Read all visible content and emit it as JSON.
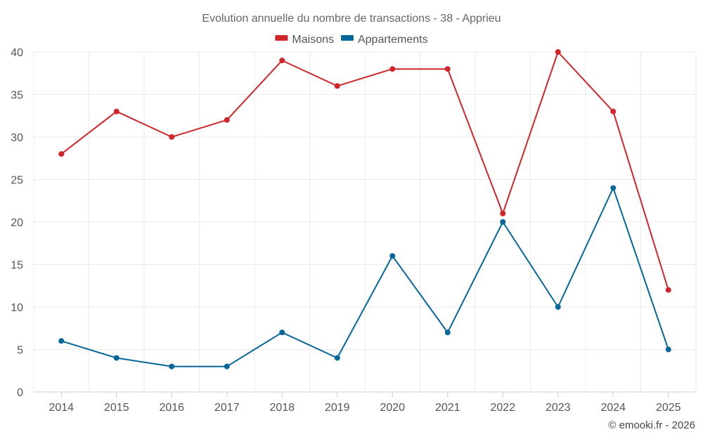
{
  "chart_data": {
    "type": "line",
    "title": "Evolution annuelle du nombre de transactions - 38 - Apprieu",
    "categories": [
      "2014",
      "2015",
      "2016",
      "2017",
      "2018",
      "2019",
      "2020",
      "2021",
      "2022",
      "2023",
      "2024",
      "2025"
    ],
    "ylim": [
      0,
      40
    ],
    "yticks": [
      0,
      5,
      10,
      15,
      20,
      25,
      30,
      35,
      40
    ],
    "grid": true,
    "legend_position": "top-center",
    "series": [
      {
        "name": "Maisons",
        "color": "#d0252a",
        "values": [
          28,
          33,
          30,
          32,
          39,
          36,
          38,
          38,
          21,
          40,
          33,
          12
        ]
      },
      {
        "name": "Appartements",
        "color": "#05679a",
        "values": [
          6,
          4,
          3,
          3,
          7,
          4,
          16,
          7,
          20,
          10,
          24,
          5
        ]
      }
    ],
    "credit": "© emooki.fr - 2026"
  }
}
